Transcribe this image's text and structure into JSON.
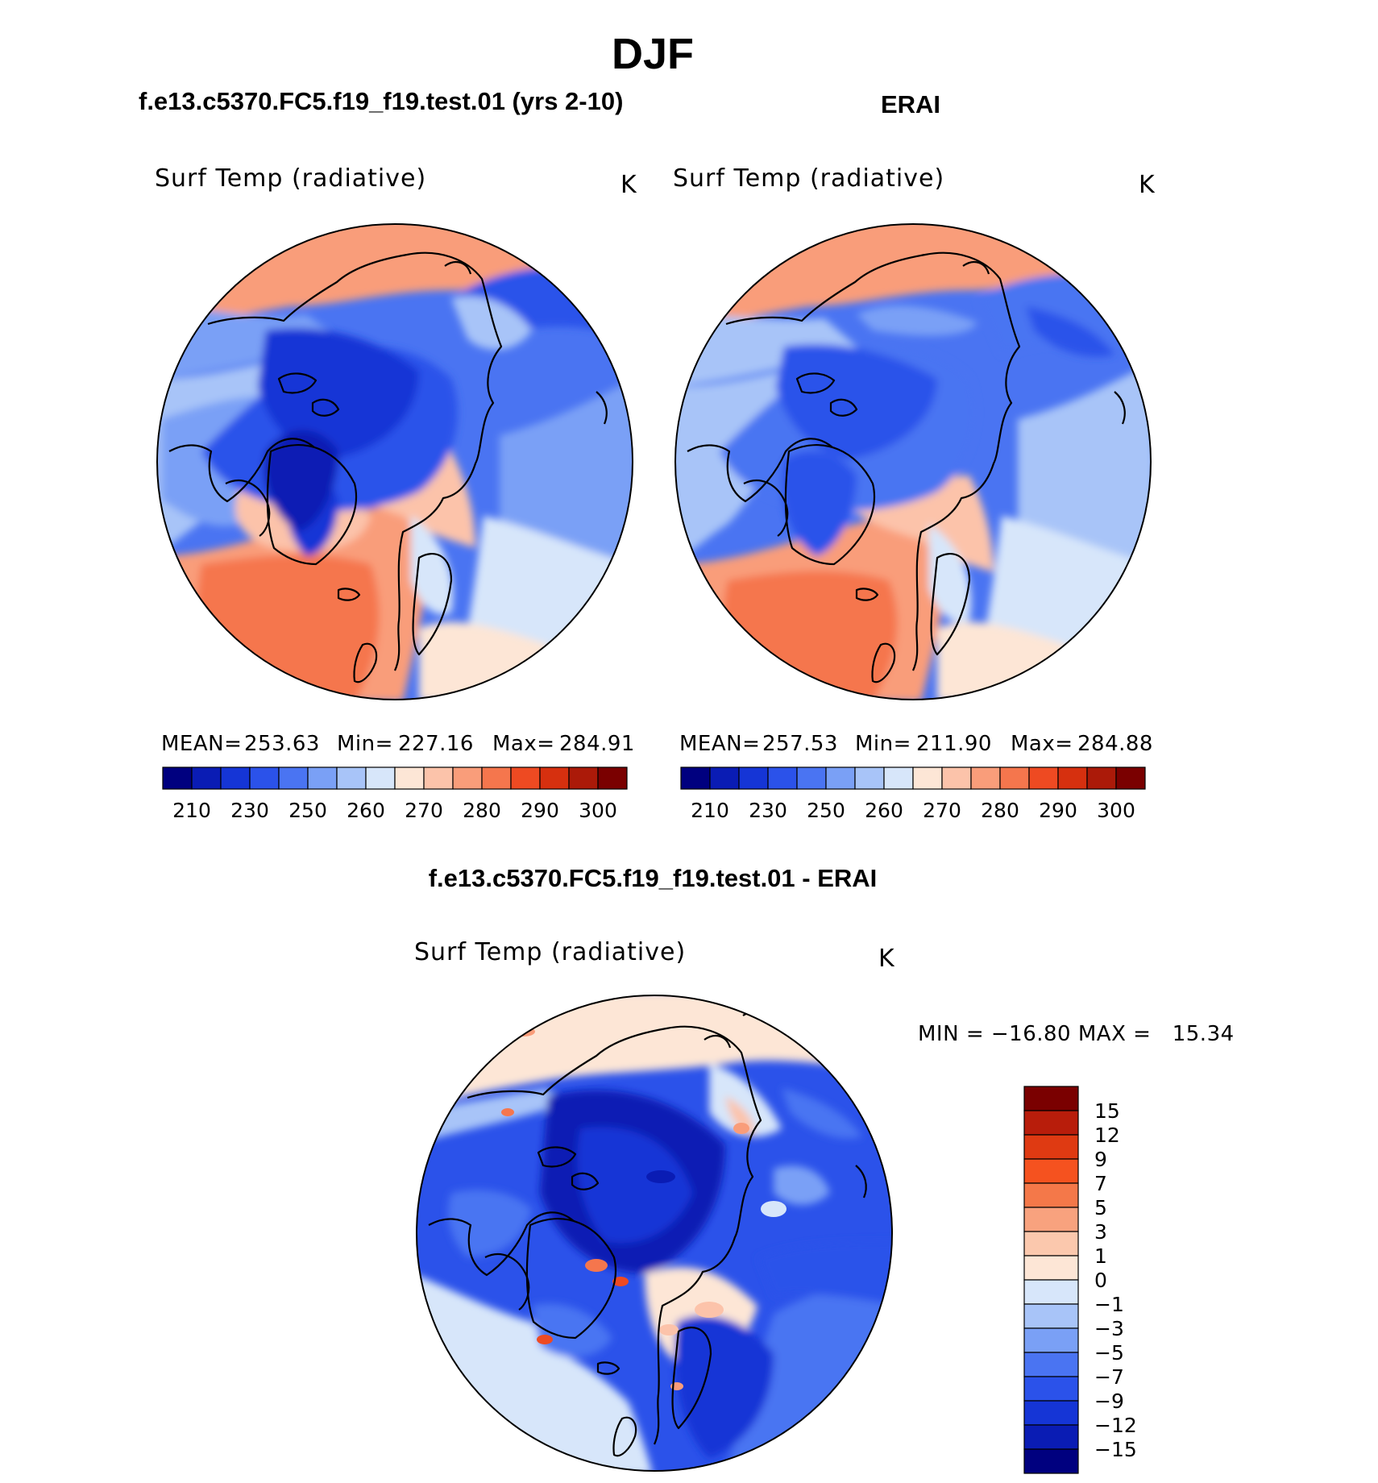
{
  "main_title": "DJF",
  "panels": {
    "left": {
      "case_title": "f.e13.c5370.FC5.f19_f19.test.01 (yrs 2-10)",
      "variable": "Surf Temp (radiative)",
      "units": "K",
      "mean_label": "MEAN=",
      "mean": "253.63",
      "min_label": "Min=",
      "min": "227.16",
      "max_label": "Max=",
      "max": "284.91"
    },
    "right": {
      "case_title": "ERAI",
      "variable": "Surf Temp (radiative)",
      "units": "K",
      "mean_label": "MEAN=",
      "mean": "257.53",
      "min_label": "Min=",
      "min": "211.90",
      "max_label": "Max=",
      "max": "284.88"
    },
    "diff": {
      "case_title": "f.e13.c5370.FC5.f19_f19.test.01 - ERAI",
      "variable": "Surf Temp (radiative)",
      "units": "K",
      "minmax_text": "MIN = −16.80 MAX =   15.34"
    }
  },
  "chart_data": [
    {
      "type": "heatmap",
      "projection": "north-polar-stereographic",
      "title": "f.e13.c5370.FC5.f19_f19.test.01 (yrs 2-10)",
      "variable": "Surf Temp (radiative)",
      "units": "K",
      "stats": {
        "mean": 253.63,
        "min": 227.16,
        "max": 284.91
      },
      "colorbar": {
        "orientation": "horizontal",
        "tick_labels": [
          "210",
          "230",
          "250",
          "260",
          "270",
          "280",
          "290",
          "300"
        ],
        "colors": [
          "#00007f",
          "#0a1cb4",
          "#1535d6",
          "#2b52ea",
          "#4a74f2",
          "#7aa0f6",
          "#a8c4f8",
          "#d7e6fa",
          "#fde6d6",
          "#fcc3aa",
          "#f99d7a",
          "#f5764d",
          "#ee4a22",
          "#d6300f",
          "#ab1a09",
          "#7a0000"
        ]
      }
    },
    {
      "type": "heatmap",
      "projection": "north-polar-stereographic",
      "title": "ERAI",
      "variable": "Surf Temp (radiative)",
      "units": "K",
      "stats": {
        "mean": 257.53,
        "min": 211.9,
        "max": 284.88
      },
      "colorbar": {
        "orientation": "horizontal",
        "tick_labels": [
          "210",
          "230",
          "250",
          "260",
          "270",
          "280",
          "290",
          "300"
        ],
        "colors": [
          "#00007f",
          "#0a1cb4",
          "#1535d6",
          "#2b52ea",
          "#4a74f2",
          "#7aa0f6",
          "#a8c4f8",
          "#d7e6fa",
          "#fde6d6",
          "#fcc3aa",
          "#f99d7a",
          "#f5764d",
          "#ee4a22",
          "#d6300f",
          "#ab1a09",
          "#7a0000"
        ]
      }
    },
    {
      "type": "heatmap",
      "projection": "north-polar-stereographic",
      "title": "f.e13.c5370.FC5.f19_f19.test.01 - ERAI",
      "variable": "Surf Temp (radiative)",
      "units": "K",
      "stats": {
        "min": -16.8,
        "max": 15.34
      },
      "colorbar": {
        "orientation": "vertical",
        "tick_labels": [
          "15",
          "12",
          "9",
          "7",
          "5",
          "3",
          "1",
          "0",
          "−1",
          "−3",
          "−5",
          "−7",
          "−9",
          "−12",
          "−15"
        ],
        "colors": [
          "#7a0000",
          "#b81d0b",
          "#df3a12",
          "#f5521f",
          "#f47849",
          "#f8a27e",
          "#fbc8ad",
          "#fde6d6",
          "#d7e6fa",
          "#a8c4f8",
          "#7aa0f6",
          "#4a74f2",
          "#2b52ea",
          "#1535d6",
          "#0a1cb4",
          "#00007f"
        ]
      }
    }
  ]
}
